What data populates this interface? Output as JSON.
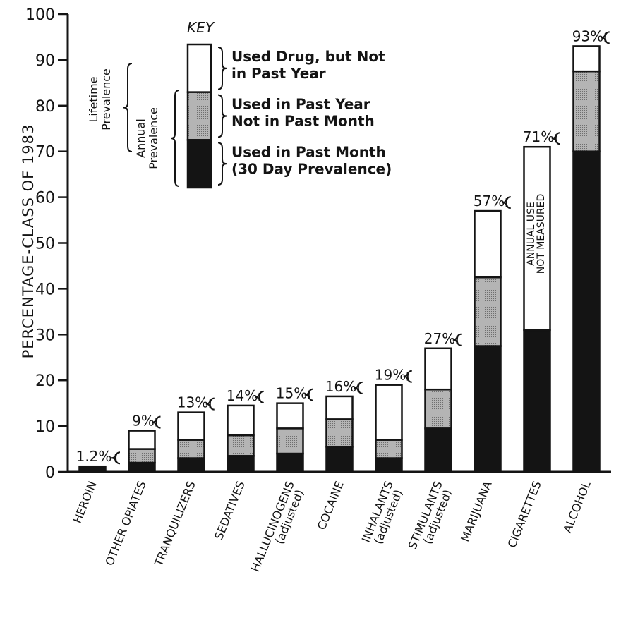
{
  "chart_data": {
    "type": "bar",
    "stacked": true,
    "ylabel": "PERCENTAGE-CLASS OF 1983",
    "ylim": [
      0,
      100
    ],
    "yticks": [
      "0",
      "10",
      "20",
      "30",
      "40",
      "50",
      "60",
      "70",
      "80",
      "90",
      "100"
    ],
    "grid": false,
    "legend_position": "top-left",
    "categories": [
      {
        "lines": [
          "HEROIN"
        ]
      },
      {
        "lines": [
          "OTHER OPIATES"
        ]
      },
      {
        "lines": [
          "TRANQUILIZERS"
        ]
      },
      {
        "lines": [
          "SEDATIVES"
        ]
      },
      {
        "lines": [
          "HALLUCINOGENS",
          "(adjusted)"
        ]
      },
      {
        "lines": [
          "COCAINE"
        ]
      },
      {
        "lines": [
          "INHALANTS",
          "(adjusted)"
        ]
      },
      {
        "lines": [
          "STIMULANTS",
          "(adjusted)"
        ]
      },
      {
        "lines": [
          "MARIJUANA"
        ]
      },
      {
        "lines": [
          "CIGARETTES"
        ]
      },
      {
        "lines": [
          "ALCOHOL"
        ]
      }
    ],
    "series": [
      {
        "key": "past_month",
        "color": "#141414",
        "values": [
          1.2,
          2.0,
          3.0,
          3.5,
          4.0,
          5.5,
          3.0,
          9.5,
          27.5,
          31.0,
          70.0
        ]
      },
      {
        "key": "past_year",
        "color": "#a9a9a9",
        "values": [
          0,
          3.0,
          4.0,
          4.5,
          5.5,
          6.0,
          4.0,
          8.5,
          15.0,
          0,
          17.5
        ]
      },
      {
        "key": "lifetime_only",
        "color": "#ffffff",
        "values": [
          0,
          4.0,
          6.0,
          6.5,
          5.5,
          5.0,
          12.0,
          9.0,
          14.5,
          40.0,
          5.5
        ]
      }
    ],
    "total_labels": [
      "1.2%",
      "9%",
      "13%",
      "14%",
      "15%",
      "16%",
      "19%",
      "27%",
      "57%",
      "71%",
      "93%"
    ],
    "annotations": [
      {
        "category": "CIGARETTES",
        "lines": [
          "ANNUAL USE",
          "NOT MEASURED"
        ]
      }
    ],
    "key": {
      "title": "KEY",
      "groups": [
        "Lifetime Prevalence",
        "Annual Prevalence"
      ],
      "entries": [
        {
          "series": "lifetime_only",
          "color": "#ffffff",
          "lines": [
            "Used Drug, but Not",
            "in Past Year"
          ]
        },
        {
          "series": "past_year",
          "color": "#a9a9a9",
          "lines": [
            "Used in Past Year",
            "Not in Past Month"
          ]
        },
        {
          "series": "past_month",
          "color": "#141414",
          "lines": [
            "Used in Past Month",
            "(30 Day Prevalence)"
          ]
        }
      ]
    }
  }
}
